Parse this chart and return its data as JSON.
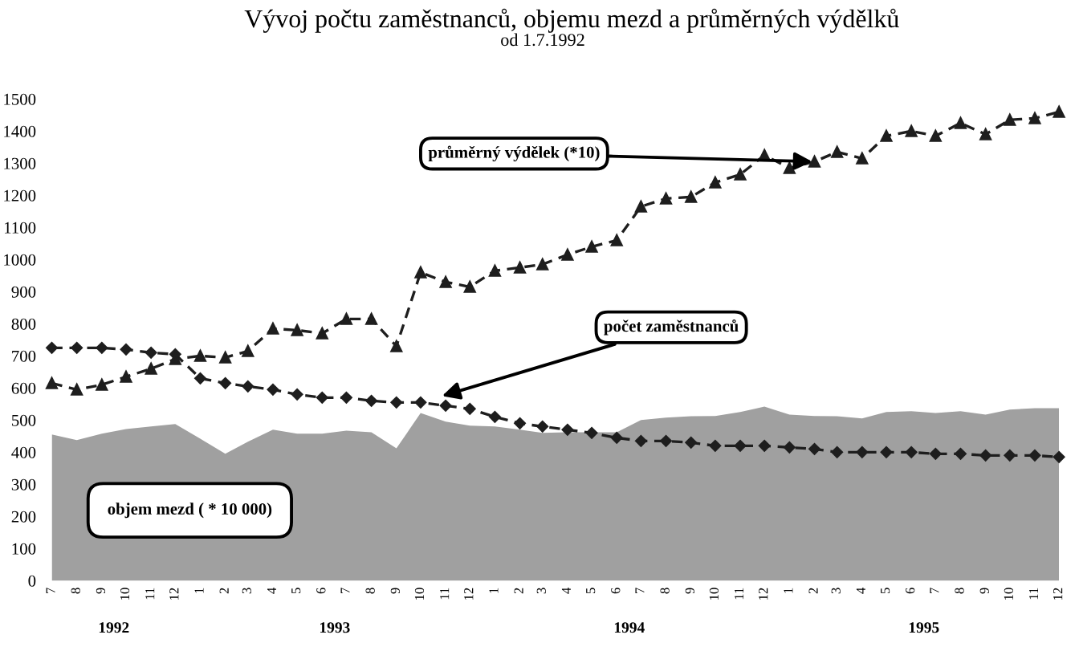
{
  "chart_data": {
    "type": "line",
    "title": "Vývoj počtu zaměstnanců, objemu mezd a průměrných výdělků",
    "subtitle": "od 1.7.1992",
    "x": [
      "1992-07",
      "1992-08",
      "1992-09",
      "1992-10",
      "1992-11",
      "1992-12",
      "1993-01",
      "1993-02",
      "1993-03",
      "1993-04",
      "1993-05",
      "1993-06",
      "1993-07",
      "1993-08",
      "1993-09",
      "1993-10",
      "1993-11",
      "1993-12",
      "1994-01",
      "1994-02",
      "1994-03",
      "1994-04",
      "1994-05",
      "1994-06",
      "1994-07",
      "1994-08",
      "1994-09",
      "1994-10",
      "1994-11",
      "1994-12",
      "1995-01",
      "1995-02",
      "1995-03",
      "1995-04",
      "1995-05",
      "1995-06",
      "1995-07",
      "1995-08",
      "1995-09",
      "1995-10",
      "1995-11",
      "1995-12"
    ],
    "xlim": [
      "1992-07",
      "1995-12"
    ],
    "xticks": [
      {
        "value": "1992-07",
        "label": "7"
      },
      {
        "value": "1992-08",
        "label": "8"
      },
      {
        "value": "1992-09",
        "label": "9"
      },
      {
        "value": "1992-10",
        "label": "10"
      },
      {
        "value": "1992-11",
        "label": "11"
      },
      {
        "value": "1992-12",
        "label": "12"
      },
      {
        "value": "1993-01",
        "label": "1"
      },
      {
        "value": "1993-02",
        "label": "2"
      },
      {
        "value": "1993-03",
        "label": "3"
      },
      {
        "value": "1993-04",
        "label": "4"
      },
      {
        "value": "1993-05",
        "label": "5"
      },
      {
        "value": "1993-06",
        "label": "6"
      },
      {
        "value": "1993-07",
        "label": "7"
      },
      {
        "value": "1993-08",
        "label": "8"
      },
      {
        "value": "1993-09",
        "label": "9"
      },
      {
        "value": "1993-10",
        "label": "10"
      },
      {
        "value": "1993-11",
        "label": "11"
      },
      {
        "value": "1993-12",
        "label": "12"
      },
      {
        "value": "1994-01",
        "label": "1"
      },
      {
        "value": "1994-02",
        "label": "2"
      },
      {
        "value": "1994-03",
        "label": "3"
      },
      {
        "value": "1994-04",
        "label": "4"
      },
      {
        "value": "1994-05",
        "label": "5"
      },
      {
        "value": "1994-06",
        "label": "6"
      },
      {
        "value": "1994-07",
        "label": "7"
      },
      {
        "value": "1994-08",
        "label": "8"
      },
      {
        "value": "1994-09",
        "label": "9"
      },
      {
        "value": "1994-10",
        "label": "10"
      },
      {
        "value": "1994-11",
        "label": "11"
      },
      {
        "value": "1994-12",
        "label": "12"
      },
      {
        "value": "1995-01",
        "label": "1"
      },
      {
        "value": "1995-02",
        "label": "2"
      },
      {
        "value": "1995-03",
        "label": "3"
      },
      {
        "value": "1995-04",
        "label": "4"
      },
      {
        "value": "1995-05",
        "label": "5"
      },
      {
        "value": "1995-06",
        "label": "6"
      },
      {
        "value": "1995-07",
        "label": "7"
      },
      {
        "value": "1995-08",
        "label": "8"
      },
      {
        "value": "1995-09",
        "label": "9"
      },
      {
        "value": "1995-10",
        "label": "10"
      },
      {
        "value": "1995-11",
        "label": "11"
      },
      {
        "value": "1995-12",
        "label": "12"
      }
    ],
    "ylim": [
      0,
      1500
    ],
    "yticks": [
      0,
      100,
      200,
      300,
      400,
      500,
      600,
      700,
      800,
      900,
      1000,
      1100,
      1200,
      1300,
      1400,
      1500
    ],
    "annotations": [
      "1992",
      "1993",
      "1994",
      "1995"
    ],
    "series": [
      {
        "name": "objem mezd ( * 10 000)",
        "type": "area",
        "color": "#a0a0a0",
        "values": [
          455,
          438,
          458,
          472,
          480,
          488,
          442,
          395,
          433,
          470,
          458,
          458,
          467,
          462,
          412,
          522,
          495,
          483,
          480,
          470,
          460,
          462,
          462,
          462,
          500,
          508,
          512,
          513,
          525,
          542,
          517,
          513,
          512,
          505,
          525,
          528,
          522,
          528,
          517,
          533,
          537,
          537
        ]
      },
      {
        "name": "počet zaměstnanců",
        "color": "#1e1e1e",
        "marker": "diamond",
        "line_style": "dashed",
        "values": [
          725,
          725,
          725,
          720,
          710,
          705,
          630,
          615,
          605,
          595,
          580,
          570,
          570,
          560,
          555,
          555,
          545,
          535,
          510,
          490,
          480,
          470,
          460,
          445,
          435,
          435,
          430,
          420,
          420,
          420,
          415,
          410,
          400,
          400,
          400,
          400,
          395,
          395,
          390,
          390,
          390,
          385
        ]
      },
      {
        "name": "průměrný výdělek (*10)",
        "color": "#1e1e1e",
        "marker": "triangle",
        "line_style": "dashed",
        "values": [
          615,
          595,
          610,
          635,
          660,
          690,
          700,
          695,
          715,
          785,
          780,
          770,
          815,
          815,
          730,
          960,
          930,
          915,
          965,
          975,
          985,
          1015,
          1040,
          1060,
          1165,
          1190,
          1195,
          1240,
          1265,
          1325,
          1285,
          1305,
          1335,
          1315,
          1385,
          1400,
          1385,
          1425,
          1390,
          1435,
          1440,
          1460
        ]
      }
    ]
  }
}
